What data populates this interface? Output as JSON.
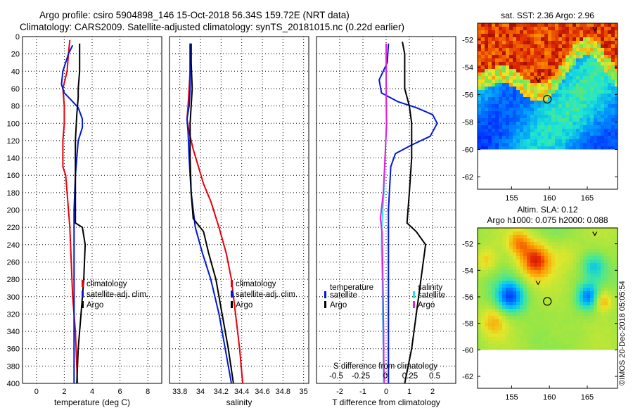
{
  "header": {
    "title_line1": "Argo profile: csiro 5904898_146 15-Oct-2018 56.34S 159.72E (NRT data)",
    "title_line2": "Climatology: CARS2009. Satellite-adjusted climatology: synTS_20181015.nc (0.22d earlier)"
  },
  "colors": {
    "climatology": "#e8000b",
    "satellite": "#0019d6",
    "argo": "#000000",
    "sat_salinity": "#20e5ef",
    "argo_salinity": "#e020e0"
  },
  "depth_ticks": [
    0,
    20,
    40,
    60,
    80,
    100,
    120,
    140,
    160,
    180,
    200,
    220,
    240,
    260,
    280,
    300,
    320,
    340,
    360,
    380,
    400
  ],
  "chart_data": [
    {
      "type": "line",
      "id": "temperature",
      "xlabel": "temperature (deg C)",
      "ylabel": "",
      "xlim": [
        -1,
        9
      ],
      "ylim": [
        400,
        0
      ],
      "xticks": [
        0,
        2,
        4,
        6,
        8
      ],
      "grid": true,
      "legend": [
        "climatology",
        "satellite-adj. clim.",
        "Argo"
      ],
      "series": [
        {
          "name": "climatology",
          "color": "#e8000b",
          "points": [
            [
              2.4,
              4
            ],
            [
              2.3,
              20
            ],
            [
              2.2,
              40
            ],
            [
              1.9,
              60
            ],
            [
              2.0,
              80
            ],
            [
              2.0,
              100
            ],
            [
              1.9,
              120
            ],
            [
              1.9,
              140
            ],
            [
              1.9,
              150
            ],
            [
              2.1,
              160
            ],
            [
              2.2,
              180
            ],
            [
              2.4,
              220
            ],
            [
              2.5,
              260
            ],
            [
              2.6,
              300
            ],
            [
              2.8,
              340
            ],
            [
              2.9,
              380
            ],
            [
              2.95,
              400
            ]
          ]
        },
        {
          "name": "satellite-adj. clim.",
          "color": "#0019d6",
          "points": [
            [
              2.6,
              10
            ],
            [
              2.3,
              20
            ],
            [
              1.9,
              40
            ],
            [
              1.8,
              55
            ],
            [
              2.0,
              65
            ],
            [
              2.6,
              75
            ],
            [
              3.0,
              82
            ],
            [
              3.3,
              95
            ],
            [
              3.3,
              105
            ],
            [
              3.0,
              120
            ],
            [
              2.9,
              140
            ],
            [
              2.8,
              160
            ],
            [
              2.7,
              200
            ],
            [
              2.7,
              260
            ],
            [
              2.7,
              300
            ],
            [
              2.7,
              340
            ],
            [
              2.7,
              400
            ]
          ]
        },
        {
          "name": "Argo",
          "color": "#000000",
          "points": [
            [
              3.1,
              8
            ],
            [
              3.1,
              40
            ],
            [
              3.0,
              60
            ],
            [
              3.0,
              70
            ],
            [
              2.9,
              90
            ],
            [
              2.8,
              120
            ],
            [
              2.8,
              200
            ],
            [
              2.8,
              215
            ],
            [
              3.3,
              220
            ],
            [
              3.5,
              240
            ],
            [
              3.4,
              280
            ],
            [
              3.2,
              320
            ],
            [
              3.0,
              360
            ],
            [
              2.9,
              400
            ]
          ]
        }
      ]
    },
    {
      "type": "line",
      "id": "salinity",
      "xlabel": "salinity",
      "ylabel": "",
      "xlim": [
        33.7,
        35.05
      ],
      "ylim": [
        400,
        0
      ],
      "xticks": [
        "33.8",
        "34",
        "34.2",
        "34.4",
        "34.6",
        "34.8",
        "35"
      ],
      "xtick_values": [
        33.8,
        34.0,
        34.2,
        34.4,
        34.6,
        34.8,
        35.0
      ],
      "grid": true,
      "legend": [
        "climatology",
        "satellite-adj. clim.",
        "Argo"
      ],
      "series": [
        {
          "name": "climatology",
          "color": "#e8000b",
          "points": [
            [
              33.9,
              8
            ],
            [
              33.9,
              40
            ],
            [
              33.88,
              80
            ],
            [
              33.87,
              95
            ],
            [
              33.89,
              110
            ],
            [
              33.93,
              130
            ],
            [
              33.98,
              150
            ],
            [
              34.03,
              170
            ],
            [
              34.1,
              190
            ],
            [
              34.18,
              220
            ],
            [
              34.25,
              250
            ],
            [
              34.3,
              280
            ],
            [
              34.34,
              320
            ],
            [
              34.38,
              360
            ],
            [
              34.41,
              400
            ]
          ]
        },
        {
          "name": "satellite-adj. clim.",
          "color": "#0019d6",
          "points": [
            [
              33.9,
              8
            ],
            [
              33.9,
              60
            ],
            [
              33.89,
              80
            ],
            [
              33.87,
              95
            ],
            [
              33.88,
              110
            ],
            [
              33.89,
              140
            ],
            [
              33.91,
              180
            ],
            [
              33.95,
              220
            ],
            [
              34.02,
              250
            ],
            [
              34.1,
              280
            ],
            [
              34.18,
              320
            ],
            [
              34.24,
              360
            ],
            [
              34.3,
              400
            ]
          ]
        },
        {
          "name": "Argo",
          "color": "#000000",
          "points": [
            [
              33.91,
              8
            ],
            [
              33.91,
              30
            ],
            [
              33.92,
              60
            ],
            [
              33.91,
              80
            ],
            [
              33.9,
              100
            ],
            [
              33.9,
              140
            ],
            [
              33.91,
              180
            ],
            [
              33.93,
              210
            ],
            [
              34.03,
              225
            ],
            [
              34.08,
              250
            ],
            [
              34.15,
              280
            ],
            [
              34.21,
              320
            ],
            [
              34.27,
              360
            ],
            [
              34.32,
              400
            ]
          ]
        }
      ]
    },
    {
      "type": "line",
      "id": "differences",
      "xlabel": "T difference from climatology",
      "xlabel2": "S difference from climatology",
      "ylabel": "",
      "xlim": [
        -3,
        3
      ],
      "ylim": [
        400,
        0
      ],
      "xticks": [
        -2,
        -1,
        0,
        1,
        2
      ],
      "xticks2": [
        "-0.5",
        "-0.25",
        "0",
        "0.25",
        "0.5"
      ],
      "xtick2_values": [
        -0.5,
        -0.25,
        0,
        0.25,
        0.5
      ],
      "grid": true,
      "legend_temperature": {
        "title": "temperature",
        "items": [
          "satellite",
          "Argo"
        ]
      },
      "legend_salinity": {
        "title": "salinity",
        "items": [
          "satellite",
          "Argo"
        ]
      },
      "series": [
        {
          "name": "temperature satellite",
          "color": "#0019d6",
          "points": [
            [
              0.1,
              8
            ],
            [
              0.05,
              30
            ],
            [
              -0.3,
              50
            ],
            [
              -0.2,
              65
            ],
            [
              0.5,
              75
            ],
            [
              1.3,
              82
            ],
            [
              2.0,
              90
            ],
            [
              2.2,
              100
            ],
            [
              1.9,
              115
            ],
            [
              1.1,
              125
            ],
            [
              0.4,
              135
            ],
            [
              0.2,
              150
            ],
            [
              0.1,
              200
            ],
            [
              0.1,
              260
            ],
            [
              0.1,
              320
            ],
            [
              0.1,
              400
            ]
          ]
        },
        {
          "name": "temperature Argo",
          "color": "#000000",
          "points": [
            [
              0.7,
              6
            ],
            [
              0.8,
              20
            ],
            [
              0.8,
              60
            ],
            [
              1.0,
              80
            ],
            [
              1.1,
              100
            ],
            [
              1.1,
              140
            ],
            [
              1.0,
              180
            ],
            [
              0.9,
              215
            ],
            [
              1.3,
              225
            ],
            [
              1.7,
              240
            ],
            [
              1.5,
              280
            ],
            [
              1.3,
              320
            ],
            [
              1.1,
              360
            ],
            [
              0.8,
              400
            ]
          ]
        },
        {
          "name": "salinity satellite",
          "color": "#20e5ef",
          "points": [
            [
              0.0,
              8
            ],
            [
              0.0,
              60
            ],
            [
              0.01,
              100
            ],
            [
              -0.04,
              140
            ],
            [
              -0.1,
              180
            ],
            [
              -0.18,
              215
            ],
            [
              -0.2,
              240
            ],
            [
              -0.16,
              280
            ],
            [
              -0.15,
              320
            ],
            [
              -0.12,
              360
            ],
            [
              -0.11,
              400
            ]
          ]
        },
        {
          "name": "salinity Argo",
          "color": "#e020e0",
          "points": [
            [
              0.0,
              8
            ],
            [
              0.0,
              60
            ],
            [
              0.02,
              100
            ],
            [
              -0.05,
              140
            ],
            [
              -0.12,
              180
            ],
            [
              -0.25,
              210
            ],
            [
              -0.18,
              225
            ],
            [
              -0.15,
              260
            ],
            [
              -0.13,
              300
            ],
            [
              -0.11,
              340
            ],
            [
              -0.1,
              380
            ],
            [
              -0.08,
              400
            ]
          ]
        }
      ]
    },
    {
      "type": "heatmap",
      "id": "sst-map",
      "title": "sat. SST: 2.36 Argo: 2.96",
      "xticks": [
        155,
        160,
        165
      ],
      "yticks": [
        -52,
        -54,
        -56,
        -58,
        -60,
        -62
      ],
      "xlim": [
        150.5,
        169
      ],
      "ylim": [
        -62.9,
        -50.8
      ],
      "argo_position": [
        159.72,
        -56.34
      ],
      "track_points": [
        [
          166,
          -51.2
        ],
        [
          158.5,
          -54.9
        ]
      ]
    },
    {
      "type": "heatmap",
      "id": "sla-map",
      "title": "Altim. SLA: 0.12",
      "subtitle": "Argo h1000: 0.075 h2000: 0.088",
      "xticks": [
        155,
        160,
        165
      ],
      "yticks": [
        -52,
        -54,
        -56,
        -58,
        -60,
        -62
      ],
      "xlim": [
        150.5,
        169
      ],
      "ylim": [
        -62.9,
        -50.8
      ],
      "argo_position": [
        159.72,
        -56.34
      ],
      "track_points": [
        [
          166,
          -51.2
        ],
        [
          158.5,
          -54.9
        ]
      ]
    }
  ],
  "footer": {
    "stamp": "©IMOS 20-Dec-2018 05:05:54"
  }
}
